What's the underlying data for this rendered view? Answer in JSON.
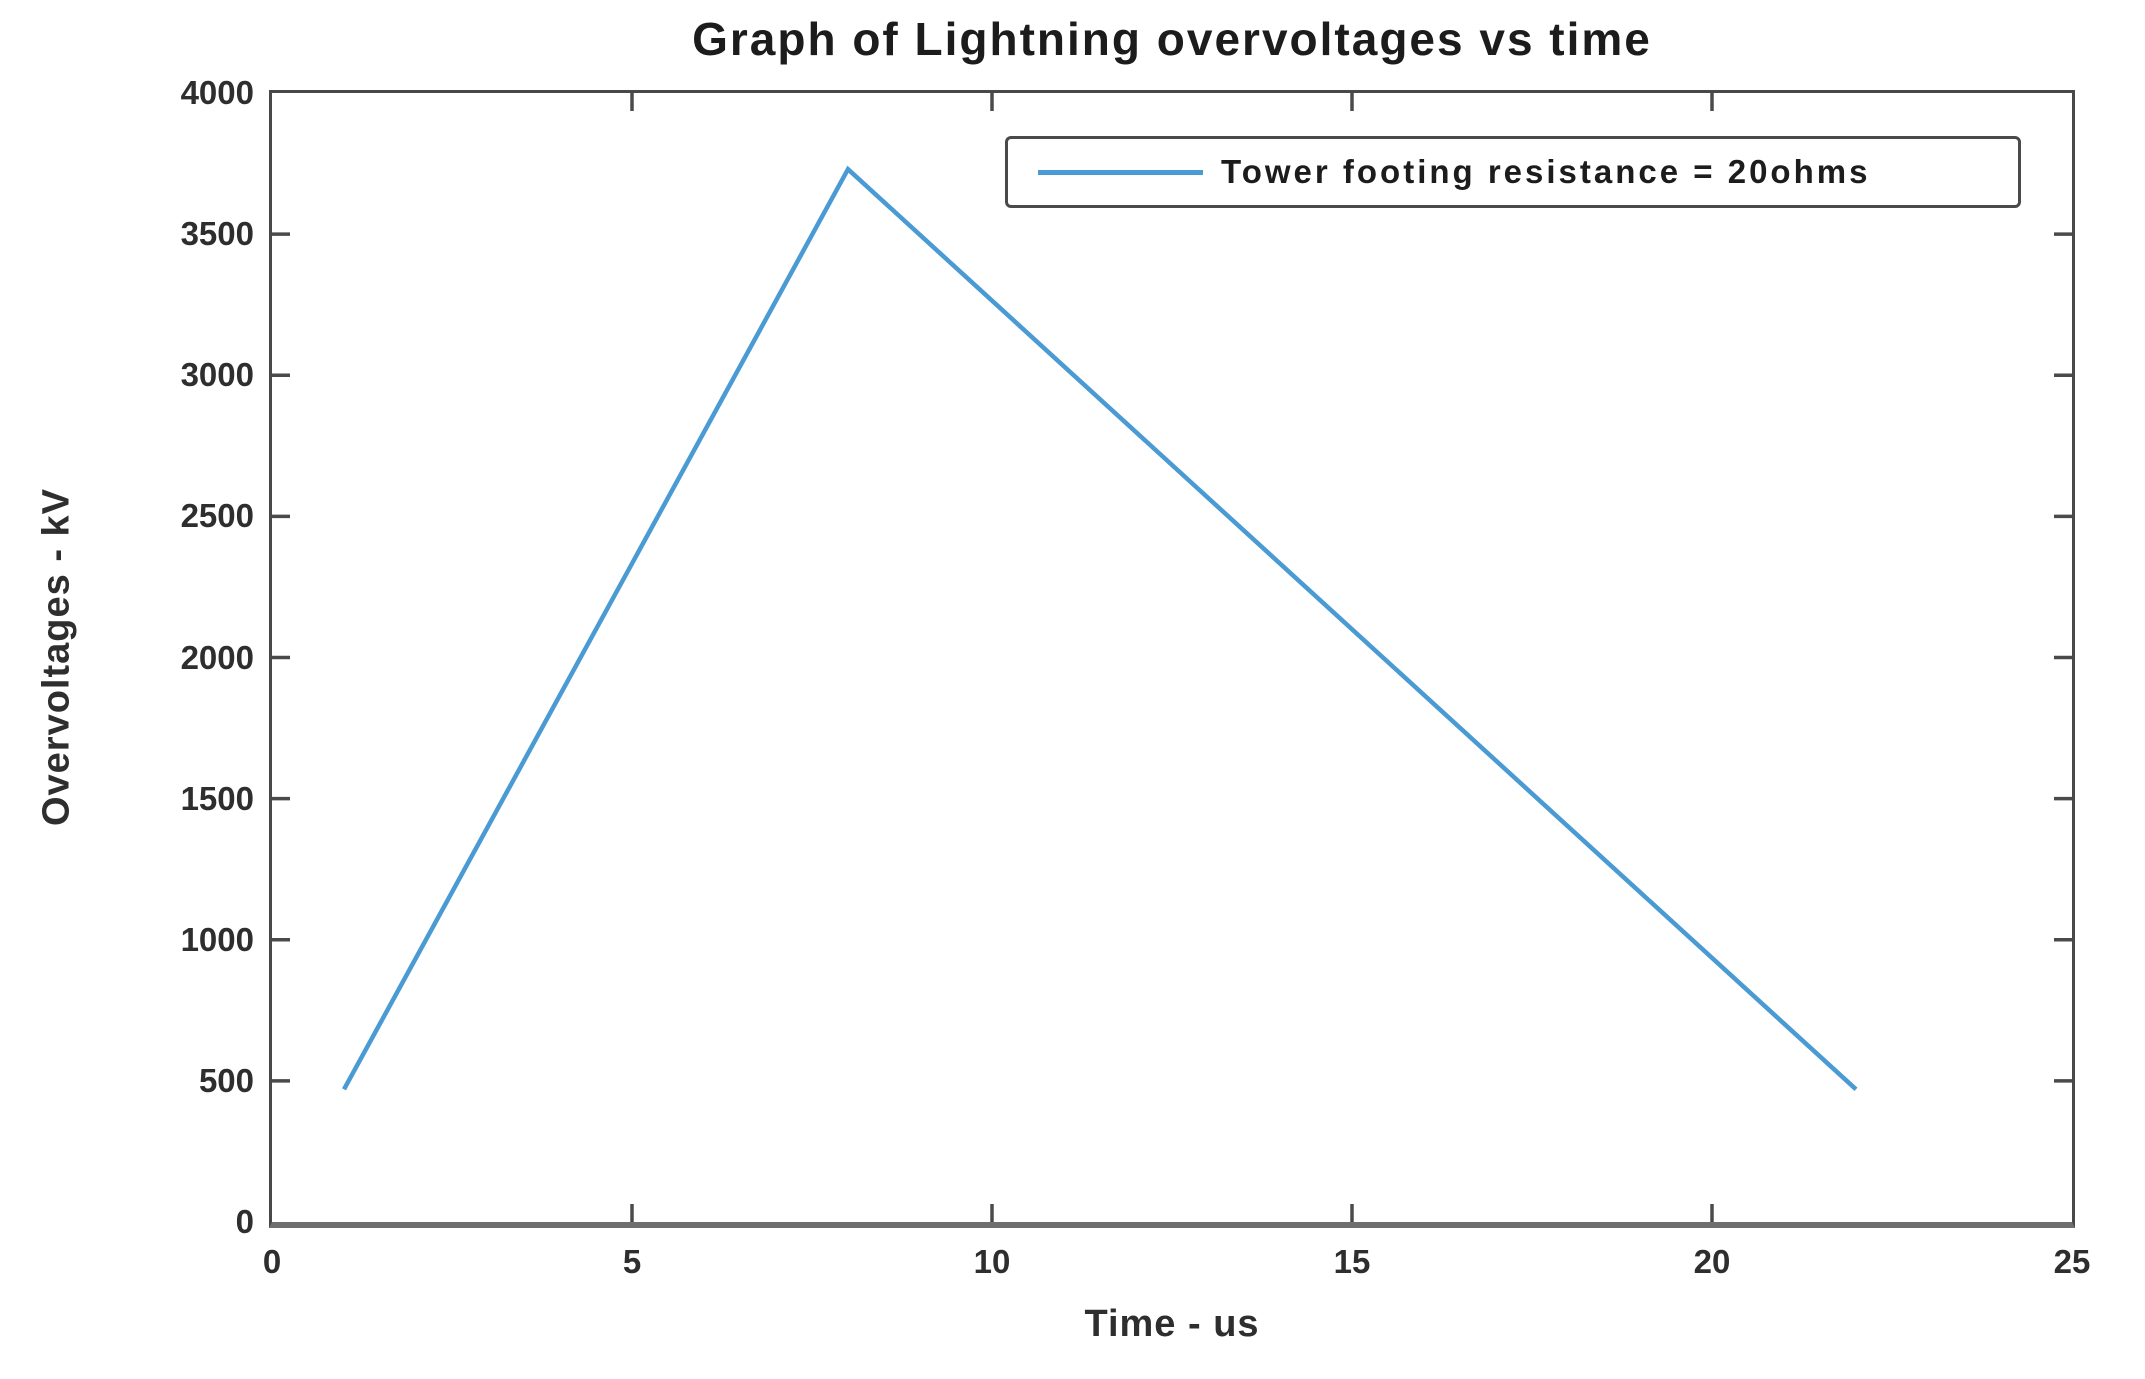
{
  "figure": {
    "background": "#ffffff"
  },
  "chart_data": {
    "type": "line",
    "title": "Graph of Lightning overvoltages vs time",
    "xlabel": "Time - us",
    "ylabel": "Overvoltages - kV",
    "xlim": [
      0,
      25
    ],
    "ylim": [
      0,
      4000
    ],
    "x_ticks": [
      0,
      5,
      10,
      15,
      20,
      25
    ],
    "y_ticks": [
      0,
      500,
      1000,
      1500,
      2000,
      2500,
      3000,
      3500,
      4000
    ],
    "grid": false,
    "legend_position": "top-right",
    "series": [
      {
        "name": "Tower footing resistance = 20ohms",
        "color": "#4a9ad4",
        "x": [
          1,
          8,
          22
        ],
        "y": [
          470,
          3730,
          470
        ]
      }
    ],
    "colors": {
      "axis": "#4a4a4a",
      "tick_text": "#2e2e2e",
      "title_text": "#1c1c1c",
      "line": "#4a9ad4"
    }
  }
}
